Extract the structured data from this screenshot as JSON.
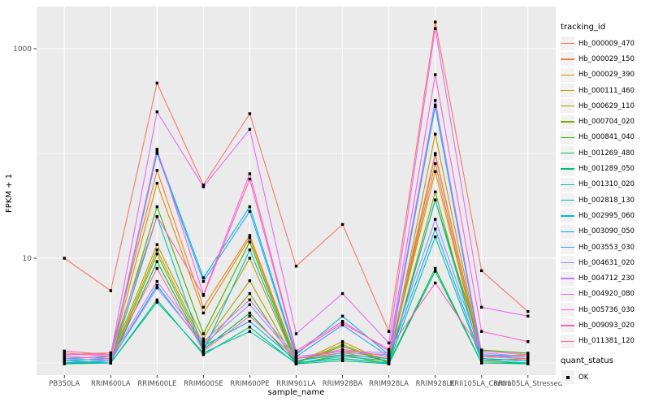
{
  "chart_data": {
    "type": "line",
    "title": "",
    "xlabel": "sample_name",
    "ylabel": "FPKM + 1",
    "y_scale": "log10",
    "ylim": [
      0.9,
      2500
    ],
    "grid": true,
    "panel_bg": "#EBEBEB",
    "grid_color": "#FFFFFF",
    "tick_color": "#333333",
    "axis_text_color": "#4D4D4D",
    "point_color": "#000000",
    "y_ticks": [
      {
        "label": "1000",
        "value": 1000
      },
      {
        "label": "10",
        "value": 10
      }
    ],
    "y_minor": [
      100,
      1
    ],
    "categories": [
      "PB350LA",
      "RRIM600LA",
      "RRIM600LE",
      "RRIM600SE",
      "RRIM600PE",
      "RRIM901LA",
      "RRIM928BA",
      "RRIM928LA",
      "RRIM928LE",
      "RRII105LA_Control",
      "RRII105LA_Stressed"
    ],
    "series": [
      {
        "name": "Hb_000009_470",
        "color": "#F8766D",
        "values": [
          10,
          4.9,
          470,
          50,
          240,
          8.4,
          21,
          2.0,
          1800,
          7.6,
          3.1
        ]
      },
      {
        "name": "Hb_000029_150",
        "color": "#EA8331",
        "values": [
          1.2,
          1.25,
          69,
          3.4,
          16.5,
          1.1,
          1.3,
          1.1,
          67,
          1.1,
          1.05
        ]
      },
      {
        "name": "Hb_000029_390",
        "color": "#D89000",
        "values": [
          1.1,
          1.15,
          52,
          3.0,
          15.6,
          1.05,
          1.25,
          1.05,
          80,
          1.05,
          1.1
        ]
      },
      {
        "name": "Hb_000111_460",
        "color": "#C09B00",
        "values": [
          1.05,
          1.1,
          13.5,
          1.7,
          10,
          1.0,
          1.6,
          1.0,
          153,
          1.15,
          1.2
        ]
      },
      {
        "name": "Hb_000629_110",
        "color": "#A3A500",
        "values": [
          1.0,
          1.05,
          12,
          1.5,
          6.1,
          1.0,
          1.5,
          1.0,
          97,
          1.1,
          1.05
        ]
      },
      {
        "name": "Hb_000704_020",
        "color": "#7CAE00",
        "values": [
          1.0,
          1.0,
          11,
          1.4,
          4.6,
          0.98,
          1.2,
          0.98,
          43,
          1.05,
          1.0
        ]
      },
      {
        "name": "Hb_000841_040",
        "color": "#39B600",
        "values": [
          1.0,
          1.05,
          31,
          1.9,
          14.3,
          1.0,
          1.45,
          1.0,
          36,
          1.33,
          1.24
        ]
      },
      {
        "name": "Hb_001269_480",
        "color": "#00BB4E",
        "values": [
          0.98,
          1.0,
          9.3,
          1.35,
          3.0,
          1.0,
          1.1,
          1.0,
          8.0,
          1.0,
          1.0
        ]
      },
      {
        "name": "Hb_001289_050",
        "color": "#00BF7D",
        "values": [
          1.0,
          1.0,
          4.0,
          1.2,
          2.2,
          0.98,
          1.05,
          0.98,
          7.5,
          1.0,
          0.98
        ]
      },
      {
        "name": "Hb_001310_020",
        "color": "#00C1A3",
        "values": [
          1.0,
          1.0,
          3.8,
          1.25,
          2.0,
          1.0,
          1.1,
          1.0,
          16,
          1.05,
          1.0
        ]
      },
      {
        "name": "Hb_002818_130",
        "color": "#00BFC4",
        "values": [
          1.05,
          1.0,
          25,
          1.3,
          12,
          1.0,
          1.15,
          1.05,
          36,
          1.1,
          1.05
        ]
      },
      {
        "name": "Hb_002995_060",
        "color": "#00BBDA",
        "values": [
          1.1,
          1.15,
          105,
          6.5,
          31,
          1.2,
          2.8,
          1.2,
          280,
          1.2,
          1.15
        ]
      },
      {
        "name": "Hb_003090_050",
        "color": "#00B0F6",
        "values": [
          1.0,
          1.05,
          5.5,
          1.45,
          2.5,
          1.05,
          1.2,
          1.1,
          19,
          1.1,
          1.05
        ]
      },
      {
        "name": "Hb_003553_030",
        "color": "#35A2FF",
        "values": [
          1.05,
          1.1,
          100,
          6.0,
          28,
          1.15,
          2.3,
          1.15,
          290,
          1.15,
          1.1
        ]
      },
      {
        "name": "Hb_004631_020",
        "color": "#9590FF",
        "values": [
          1.1,
          1.05,
          5.2,
          1.5,
          3.6,
          1.1,
          1.25,
          1.2,
          23.5,
          1.2,
          1.1
        ]
      },
      {
        "name": "Hb_004712_230",
        "color": "#C77CFF",
        "values": [
          1.15,
          1.1,
          6.0,
          1.6,
          4.0,
          1.15,
          1.3,
          1.25,
          320,
          1.25,
          1.15
        ]
      },
      {
        "name": "Hb_004920_080",
        "color": "#E76BF3",
        "values": [
          1.2,
          1.2,
          250,
          48,
          170,
          1.9,
          4.6,
          1.55,
          1560,
          3.4,
          2.8
        ]
      },
      {
        "name": "Hb_005736_030",
        "color": "#FA62DB",
        "values": [
          1.15,
          1.1,
          110,
          4.5,
          64,
          1.3,
          2.5,
          1.3,
          565,
          2.0,
          1.6
        ]
      },
      {
        "name": "Hb_009093_020",
        "color": "#FF62BC",
        "values": [
          1.3,
          1.2,
          25,
          4.4,
          57,
          1.25,
          2.4,
          1.35,
          5.8,
          1.3,
          1.2
        ]
      },
      {
        "name": "Hb_011381_120",
        "color": "#FF6A98",
        "values": [
          1.25,
          1.15,
          8.0,
          1.3,
          2.8,
          1.1,
          1.35,
          1.15,
          100,
          1.15,
          1.1
        ]
      }
    ],
    "legend": {
      "title": "tracking_id",
      "quant_title": "quant_status",
      "quant_items": [
        {
          "label": "OK"
        }
      ]
    }
  }
}
